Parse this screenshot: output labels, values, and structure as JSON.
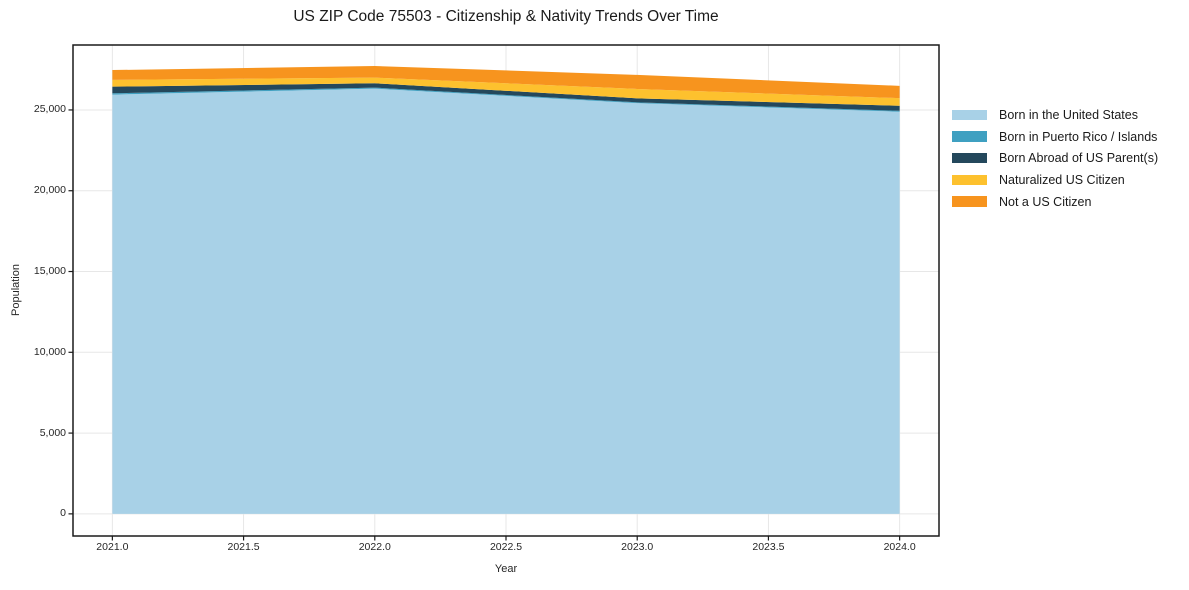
{
  "title": "US ZIP Code 75503 - Citizenship & Nativity Trends Over Time",
  "chart_data": {
    "type": "area",
    "stacked": true,
    "title": "US ZIP Code 75503 - Citizenship & Nativity Trends Over Time",
    "xlabel": "Year",
    "ylabel": "Population",
    "x": [
      2021,
      2022,
      2023,
      2024
    ],
    "series": [
      {
        "name": "Born in the United States",
        "color": "#A8D1E7",
        "values": [
          25950,
          26320,
          25420,
          24890
        ]
      },
      {
        "name": "Born in Puerto Rico / Islands",
        "color": "#3FA0C1",
        "values": [
          80,
          60,
          50,
          60
        ]
      },
      {
        "name": "Born Abroad of US Parent(s)",
        "color": "#24485C",
        "values": [
          410,
          270,
          250,
          310
        ]
      },
      {
        "name": "Naturalized US Citizen",
        "color": "#FDC12E",
        "values": [
          420,
          350,
          580,
          470
        ]
      },
      {
        "name": "Not a US Citizen",
        "color": "#F7941E",
        "values": [
          610,
          720,
          870,
          760
        ]
      }
    ],
    "totals": [
      27470,
      27720,
      27170,
      26490
    ],
    "xlim": [
      2020.85,
      2024.15
    ],
    "ylim": [
      -1370,
      29020
    ],
    "x_ticks": [
      2021.0,
      2021.5,
      2022.0,
      2022.5,
      2023.0,
      2023.5,
      2024.0
    ],
    "x_tick_labels": [
      "2021.0",
      "2021.5",
      "2022.0",
      "2022.5",
      "2023.0",
      "2023.5",
      "2024.0"
    ],
    "y_ticks": [
      0,
      5000,
      10000,
      15000,
      20000,
      25000
    ],
    "y_tick_labels": [
      "0",
      "5,000",
      "10,000",
      "15,000",
      "20,000",
      "25,000"
    ],
    "grid": true,
    "grid_color": "#e7e7e7",
    "spine_color": "#1a1a1a",
    "legend_position": "right",
    "legend_frame": false
  }
}
